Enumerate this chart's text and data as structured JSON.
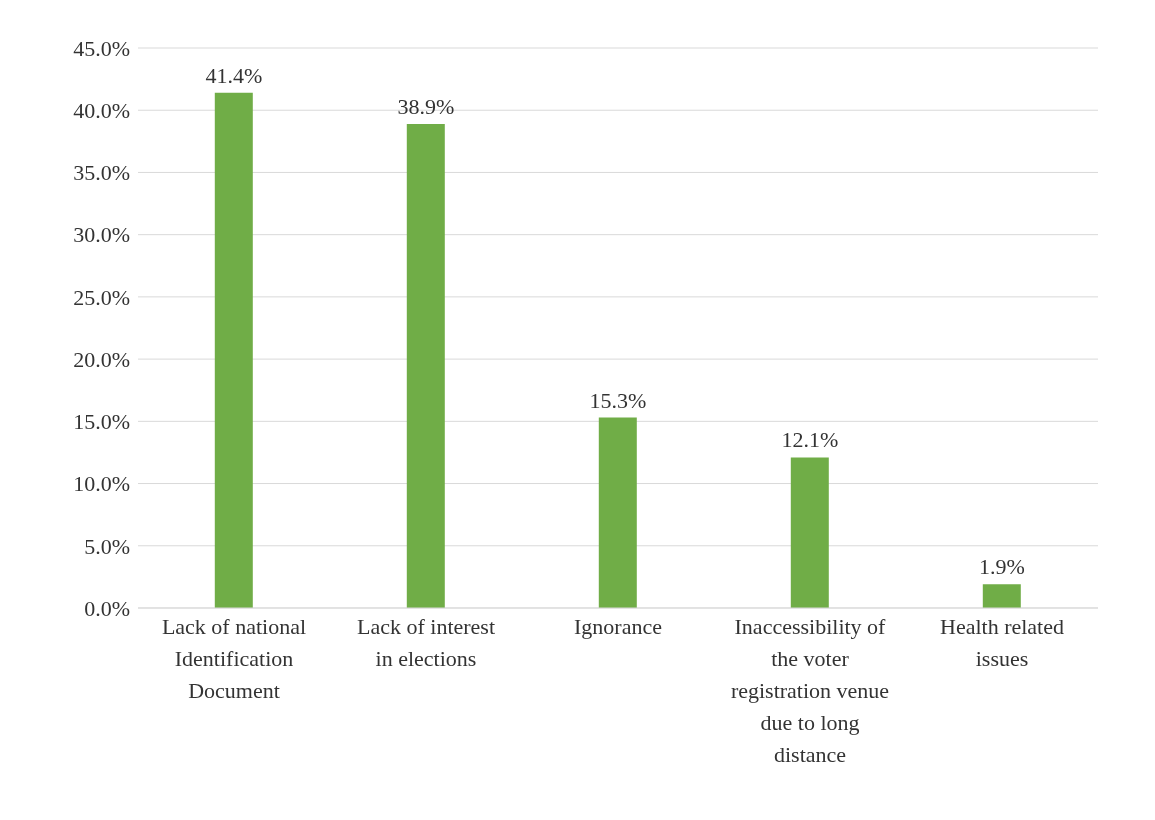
{
  "chart_data": {
    "type": "bar",
    "categories": [
      "Lack of national Identification Document",
      "Lack of interest in elections",
      "Ignorance",
      "Inaccessibility of the voter registration venue due to long distance",
      "Health related issues"
    ],
    "values": [
      41.4,
      38.9,
      15.3,
      12.1,
      1.9
    ],
    "value_labels": [
      "41.4%",
      "38.9%",
      "15.3%",
      "12.1%",
      "1.9%"
    ],
    "color": "#70ad47",
    "ylim": [
      0,
      45
    ],
    "yticks": [
      {
        "value": 0,
        "label": "0.0%"
      },
      {
        "value": 5,
        "label": "5.0%"
      },
      {
        "value": 10,
        "label": "10.0%"
      },
      {
        "value": 15,
        "label": "15.0%"
      },
      {
        "value": 20,
        "label": "20.0%"
      },
      {
        "value": 25,
        "label": "25.0%"
      },
      {
        "value": 30,
        "label": "30.0%"
      },
      {
        "value": 35,
        "label": "35.0%"
      },
      {
        "value": 40,
        "label": "40.0%"
      },
      {
        "value": 45,
        "label": "45.0%"
      }
    ],
    "grid": "y"
  }
}
